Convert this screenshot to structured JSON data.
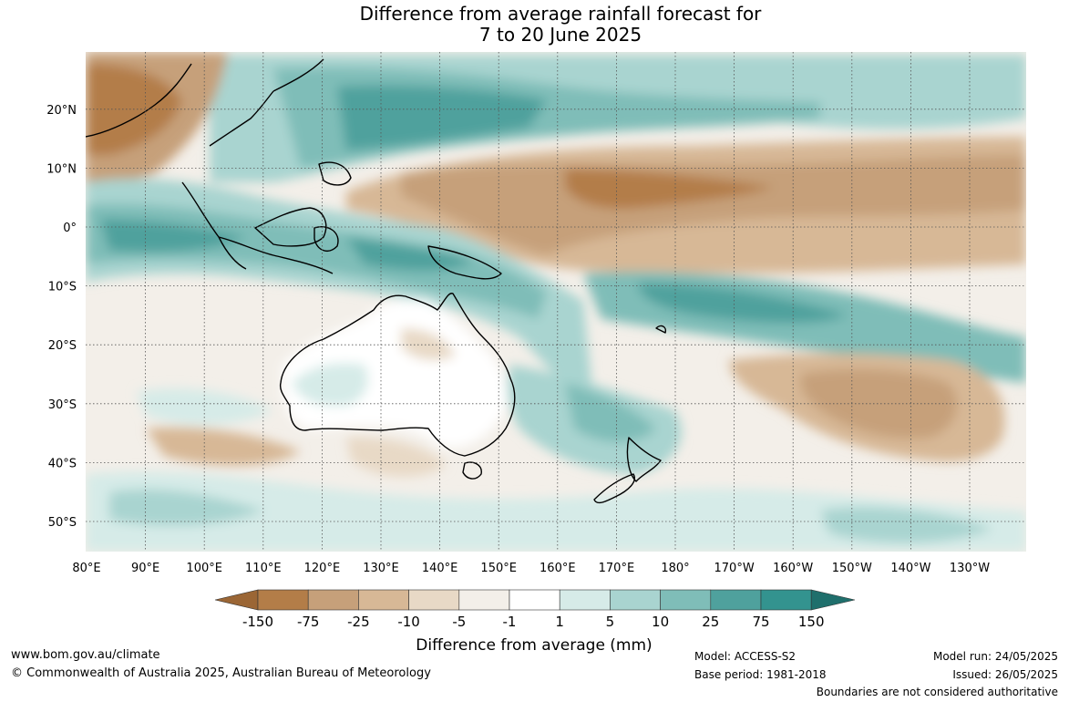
{
  "title_line1": "Difference from average rainfall forecast for",
  "title_line2": "7 to 20 June 2025",
  "map": {
    "lon_labels": [
      "80°E",
      "90°E",
      "100°E",
      "110°E",
      "120°E",
      "130°E",
      "140°E",
      "150°E",
      "160°E",
      "170°E",
      "180°",
      "170°W",
      "160°W",
      "150°W",
      "140°W",
      "130°W"
    ],
    "lat_labels": [
      "20°N",
      "10°N",
      "0°",
      "10°S",
      "20°S",
      "30°S",
      "40°S",
      "50°S"
    ]
  },
  "legend": {
    "title": "Difference from average (mm)",
    "ticks": [
      "-150",
      "-75",
      "-25",
      "-10",
      "-5",
      "-1",
      "1",
      "5",
      "10",
      "25",
      "75",
      "150"
    ],
    "colors": [
      "#9b6635",
      "#b37d48",
      "#c6a07a",
      "#d7b896",
      "#e8d9c6",
      "#f3efe9",
      "#ffffff",
      "#d6ebe8",
      "#a9d4d0",
      "#7fbdb8",
      "#4fa19d",
      "#33938f",
      "#1f6f6c"
    ]
  },
  "footer": {
    "website": "www.bom.gov.au/climate",
    "copyright": "© Commonwealth of Australia 2025, Australian Bureau of Meteorology",
    "model": "Model: ACCESS-S2",
    "base_period": "Base period: 1981-2018",
    "model_run": "Model run: 24/05/2025",
    "issued": "Issued: 26/05/2025",
    "boundaries": "Boundaries are not considered authoritative"
  }
}
